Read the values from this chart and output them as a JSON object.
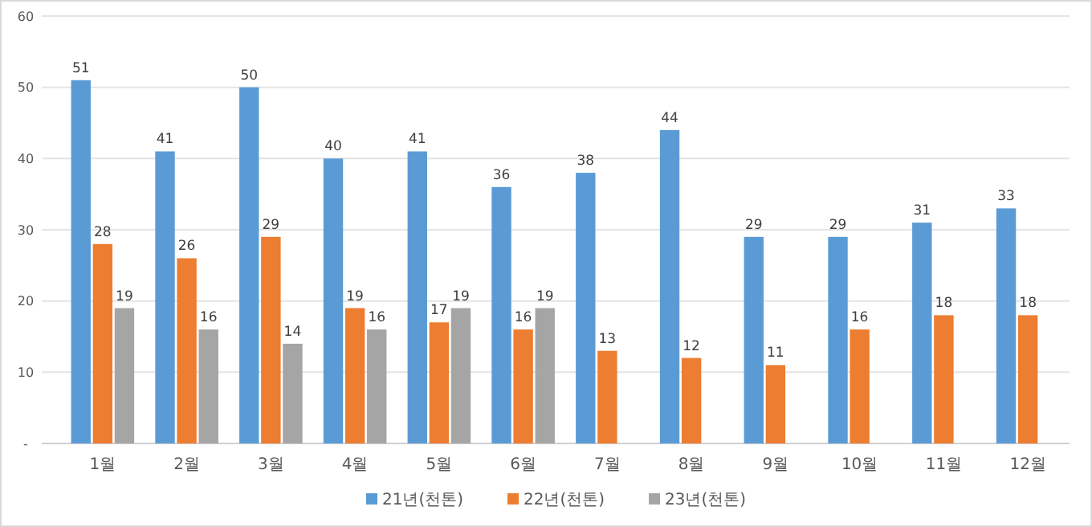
{
  "chart_data": {
    "type": "bar",
    "categories": [
      "1월",
      "2월",
      "3월",
      "4월",
      "5월",
      "6월",
      "7월",
      "8월",
      "9월",
      "10월",
      "11월",
      "12월"
    ],
    "series": [
      {
        "name": "21년(천톤)",
        "color": "#5b9bd5",
        "values": [
          51,
          41,
          50,
          40,
          41,
          36,
          38,
          44,
          29,
          29,
          31,
          33
        ]
      },
      {
        "name": "22년(천톤)",
        "color": "#ed7d31",
        "values": [
          28,
          26,
          29,
          19,
          17,
          16,
          13,
          12,
          11,
          16,
          18,
          18
        ]
      },
      {
        "name": "23년(천톤)",
        "color": "#a5a5a5",
        "values": [
          19,
          16,
          14,
          16,
          19,
          19,
          null,
          null,
          null,
          null,
          null,
          null
        ]
      }
    ],
    "ylim": [
      0,
      60
    ],
    "yticks": [
      {
        "value": 0,
        "label": "-"
      },
      10,
      20,
      30,
      40,
      50,
      60
    ],
    "grid": "y",
    "legend": "bottom",
    "data_labels": true
  }
}
